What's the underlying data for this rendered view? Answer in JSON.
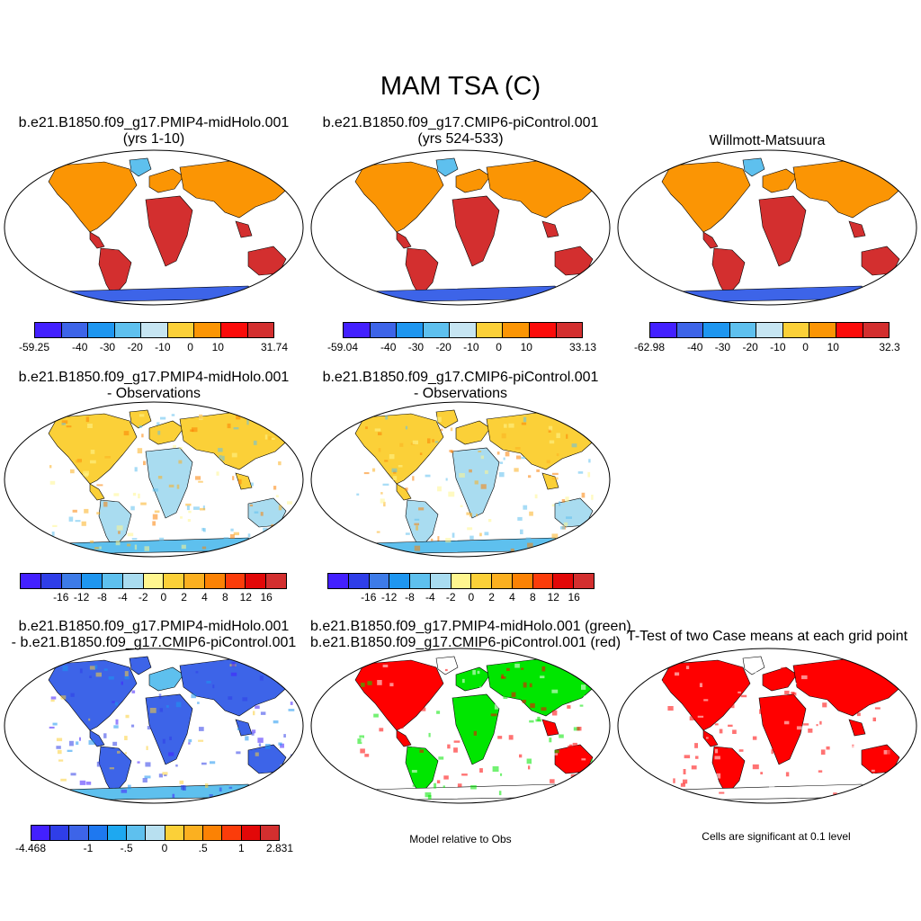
{
  "title": "MAM TSA (C)",
  "panels": [
    {
      "id": "p1",
      "title1": "b.e21.B1850.f09_g17.PMIP4-midHolo.001",
      "title2": "(yrs 1-10)",
      "style": "abs",
      "colors": [
        "#4320ff",
        "#3d64e8",
        "#1e96f0",
        "#5ec0ee",
        "#c6e5f2",
        "#fbd038",
        "#fb9504",
        "#fb0c0a",
        "#d32f2f"
      ],
      "ticks": [
        "-59.25",
        "-40",
        "-30",
        "-20",
        "-10",
        "0",
        "10",
        "31.74"
      ]
    },
    {
      "id": "p2",
      "title1": "b.e21.B1850.f09_g17.CMIP6-piControl.001",
      "title2": "(yrs 524-533)",
      "style": "abs",
      "colors": [
        "#4320ff",
        "#3d64e8",
        "#1e96f0",
        "#5ec0ee",
        "#c6e5f2",
        "#fbd038",
        "#fb9504",
        "#fb0c0a",
        "#d32f2f"
      ],
      "ticks": [
        "-59.04",
        "-40",
        "-30",
        "-20",
        "-10",
        "0",
        "10",
        "33.13"
      ]
    },
    {
      "id": "p3",
      "title1": "Willmott-Matsuura",
      "title2": "",
      "style": "abs",
      "colors": [
        "#4320ff",
        "#3d64e8",
        "#1e96f0",
        "#5ec0ee",
        "#c6e5f2",
        "#fbd038",
        "#fb9504",
        "#fb0c0a",
        "#d32f2f"
      ],
      "ticks": [
        "-62.98",
        "-40",
        "-30",
        "-20",
        "-10",
        "0",
        "10",
        "32.3"
      ]
    },
    {
      "id": "p4",
      "title1": "b.e21.B1850.f09_g17.PMIP4-midHolo.001",
      "title2": "- Observations",
      "style": "diff",
      "colors": [
        "#4320ff",
        "#2f3ee8",
        "#3d7be8",
        "#1e96f0",
        "#5ec0ee",
        "#a9dcf0",
        "#fff68f",
        "#fbd038",
        "#fbb020",
        "#fb8204",
        "#fb3c0a",
        "#e20808",
        "#d32f2f"
      ],
      "ticks": [
        "-16",
        "-12",
        "-8",
        "-4",
        "-2",
        "0",
        "2",
        "4",
        "8",
        "12",
        "16"
      ]
    },
    {
      "id": "p5",
      "title1": "b.e21.B1850.f09_g17.CMIP6-piControl.001",
      "title2": "- Observations",
      "style": "diff",
      "colors": [
        "#4320ff",
        "#2f3ee8",
        "#3d7be8",
        "#1e96f0",
        "#5ec0ee",
        "#a9dcf0",
        "#fff68f",
        "#fbd038",
        "#fbb020",
        "#fb8204",
        "#fb3c0a",
        "#e20808",
        "#d32f2f"
      ],
      "ticks": [
        "-16",
        "-12",
        "-8",
        "-4",
        "-2",
        "0",
        "2",
        "4",
        "8",
        "12",
        "16"
      ]
    },
    {
      "id": "p6",
      "title1": "b.e21.B1850.f09_g17.PMIP4-midHolo.001",
      "title2": "- b.e21.B1850.f09_g17.CMIP6-piControl.001",
      "style": "cdiff",
      "colors": [
        "#4320ff",
        "#2f3ee8",
        "#3d64e8",
        "#1e78f0",
        "#1ea8f0",
        "#5ec0ee",
        "#b8e0f0",
        "#fbd038",
        "#fbb020",
        "#fb8204",
        "#fb3c0a",
        "#e20808",
        "#d32f2f"
      ],
      "ticks": [
        "-4.468",
        "-1",
        "-.5",
        "0",
        ".5",
        "1",
        "2.831"
      ]
    },
    {
      "id": "p7",
      "title1": "b.e21.B1850.f09_g17.PMIP4-midHolo.001 (green)",
      "title2": "b.e21.B1850.f09_g17.CMIP6-piControl.001 (red)",
      "style": "rg",
      "note": "Model relative to Obs"
    },
    {
      "id": "p8",
      "title1": "T-Test of two Case means at each grid point",
      "title2": "",
      "style": "sig",
      "note": "Cells are significant at 0.1 level"
    }
  ]
}
